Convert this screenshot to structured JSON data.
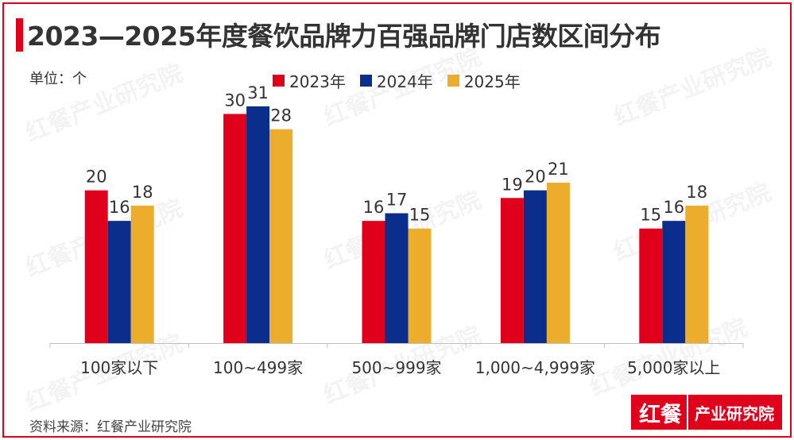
{
  "title": "2023—2025年度餐饮品牌力百强品牌门店数区间分布",
  "unit_label": "单位：个",
  "source": "资料来源：红餐产业研究院",
  "brand": {
    "mark": "红餐",
    "name": "产业研究院"
  },
  "watermark": "红餐产业研究院",
  "colors": {
    "2023年": "#e0001b",
    "2024年": "#0b2d8c",
    "2025年": "#ecac2c",
    "accent": "#e0001b"
  },
  "chart_data": {
    "type": "bar",
    "title": "2023—2025年度餐饮品牌力百强品牌门店数区间分布",
    "xlabel": "",
    "ylabel": "单位：个",
    "categories": [
      "100家以下",
      "100~499家",
      "500~999家",
      "1,000~4,999家",
      "5,000家以上"
    ],
    "series": [
      {
        "name": "2023年",
        "values": [
          20,
          30,
          16,
          19,
          15
        ]
      },
      {
        "name": "2024年",
        "values": [
          16,
          31,
          17,
          20,
          16
        ]
      },
      {
        "name": "2025年",
        "values": [
          18,
          28,
          15,
          21,
          18
        ]
      }
    ],
    "ylim": [
      0,
      34
    ],
    "grid": false,
    "legend": "top-center",
    "data_labels": true
  }
}
